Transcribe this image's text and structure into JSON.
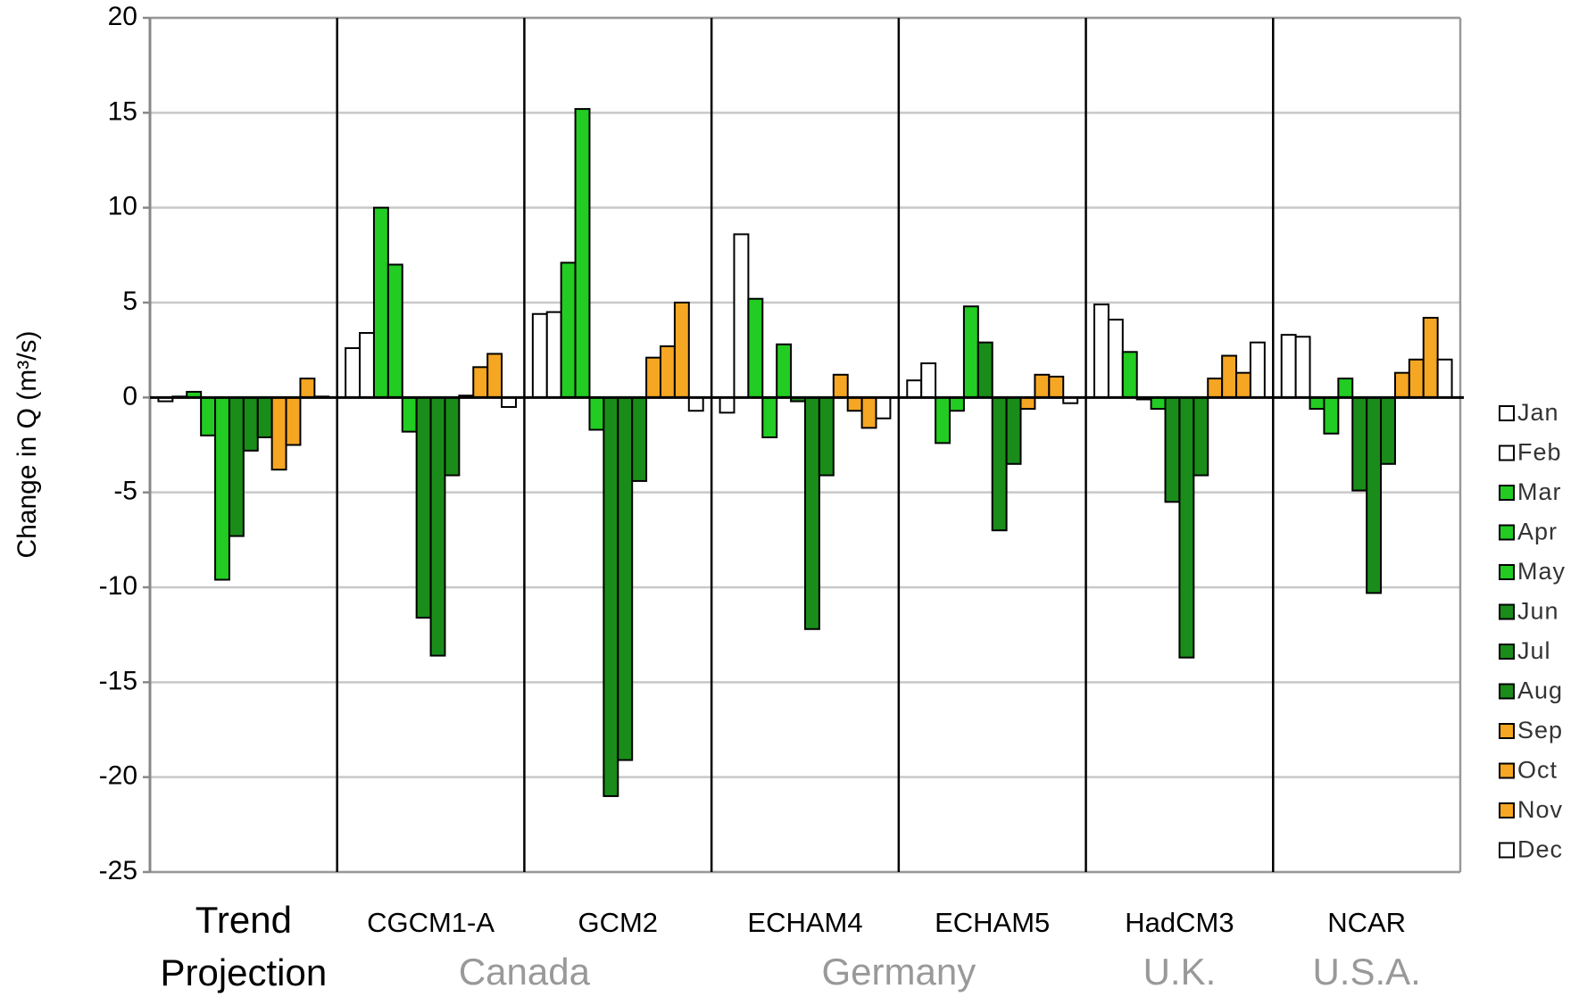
{
  "chart_data": {
    "type": "bar",
    "y_label": "Change in Q (m³/s)",
    "categories": [
      "Trend Projection",
      "CGCM1-A",
      "GCM2",
      "ECHAM4",
      "ECHAM5",
      "HadCM3",
      "NCAR"
    ],
    "group_labels": [
      {
        "label": "Canada",
        "categories": [
          "CGCM1-A",
          "GCM2"
        ]
      },
      {
        "label": "Germany",
        "categories": [
          "ECHAM4",
          "ECHAM5"
        ]
      },
      {
        "label": "U.K.",
        "categories": [
          "HadCM3"
        ]
      },
      {
        "label": "U.S.A.",
        "categories": [
          "NCAR"
        ]
      }
    ],
    "series": [
      {
        "name": "Jan",
        "color": "#ffffff",
        "values": [
          -0.2,
          2.6,
          4.4,
          -0.8,
          0.9,
          4.9,
          3.3
        ]
      },
      {
        "name": "Feb",
        "color": "#ffffff",
        "values": [
          0.05,
          3.4,
          4.5,
          8.6,
          1.8,
          4.1,
          3.2
        ]
      },
      {
        "name": "Mar",
        "color": "#22cc22",
        "values": [
          0.3,
          10.0,
          7.1,
          5.2,
          -2.4,
          2.4,
          -0.6
        ]
      },
      {
        "name": "Apr",
        "color": "#22cc22",
        "values": [
          -2.0,
          7.0,
          15.2,
          -2.1,
          -0.7,
          -0.1,
          -1.9
        ]
      },
      {
        "name": "May",
        "color": "#22cc22",
        "values": [
          -9.6,
          -1.8,
          -1.7,
          2.8,
          4.8,
          -0.6,
          1.0
        ]
      },
      {
        "name": "Jun",
        "color": "#1a8c1a",
        "values": [
          -7.3,
          -11.6,
          -21.0,
          -0.2,
          2.9,
          -5.5,
          -4.9
        ]
      },
      {
        "name": "Jul",
        "color": "#1a8c1a",
        "values": [
          -2.8,
          -13.6,
          -19.1,
          -12.2,
          -7.0,
          -13.7,
          -10.3
        ]
      },
      {
        "name": "Aug",
        "color": "#1a8c1a",
        "values": [
          -2.1,
          -4.1,
          -4.4,
          -4.1,
          -3.5,
          -4.1,
          -3.5
        ]
      },
      {
        "name": "Sep",
        "color": "#f5a623",
        "values": [
          -3.8,
          0.1,
          2.1,
          1.2,
          -0.6,
          1.0,
          1.3
        ]
      },
      {
        "name": "Oct",
        "color": "#f5a623",
        "values": [
          -2.5,
          1.6,
          2.7,
          -0.7,
          1.2,
          2.2,
          2.0
        ]
      },
      {
        "name": "Nov",
        "color": "#f5a623",
        "values": [
          1.0,
          2.3,
          5.0,
          -1.6,
          1.1,
          1.3,
          4.2
        ]
      },
      {
        "name": "Dec",
        "color": "#ffffff",
        "values": [
          0.05,
          -0.5,
          -0.7,
          -1.1,
          -0.3,
          2.9,
          2.0
        ]
      }
    ],
    "ylim": [
      -25,
      20
    ],
    "yticks": [
      -25,
      -20,
      -15,
      -10,
      -5,
      0,
      5,
      10,
      15,
      20
    ],
    "grid": true,
    "legend": "right"
  }
}
